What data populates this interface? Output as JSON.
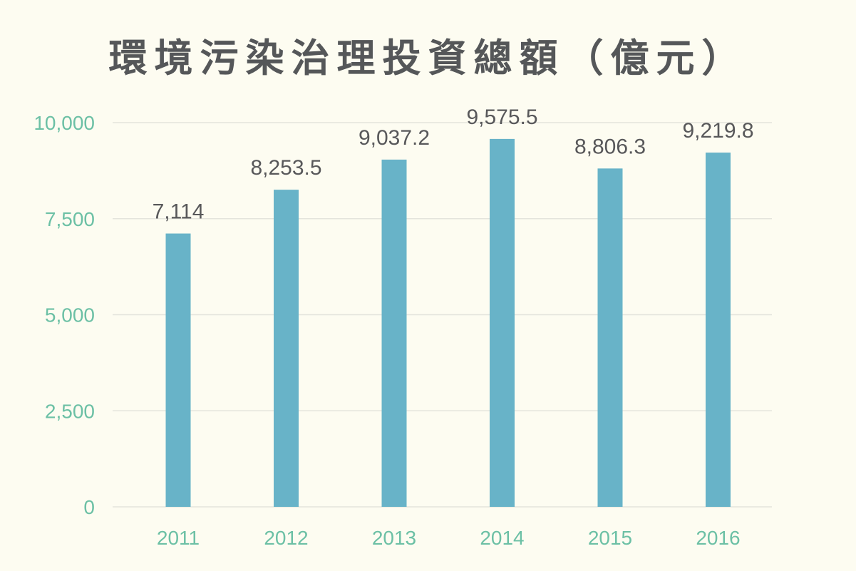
{
  "chart_data": {
    "type": "bar",
    "title": "環境污染治理投資總額（億元）",
    "categories": [
      "2011",
      "2012",
      "2013",
      "2014",
      "2015",
      "2016"
    ],
    "values": [
      7114,
      8253.5,
      9037.2,
      9575.5,
      8806.3,
      9219.8
    ],
    "value_labels": [
      "7,114",
      "8,253.5",
      "9,037.2",
      "9,575.5",
      "8,806.3",
      "9,219.8"
    ],
    "y_ticks": [
      0,
      2500,
      5000,
      7500,
      10000
    ],
    "y_tick_labels": [
      "0",
      "2,500",
      "5,000",
      "7,500",
      "10,000"
    ],
    "ylim": [
      0,
      10000
    ],
    "grid": true,
    "legend": "none",
    "colors": {
      "bar": "#68b3c8",
      "tick_text": "#6cc0a5",
      "value_text": "#58585a",
      "title_text": "#555759",
      "gridline": "#e4e4dc",
      "background": "#fdfcf1"
    }
  }
}
